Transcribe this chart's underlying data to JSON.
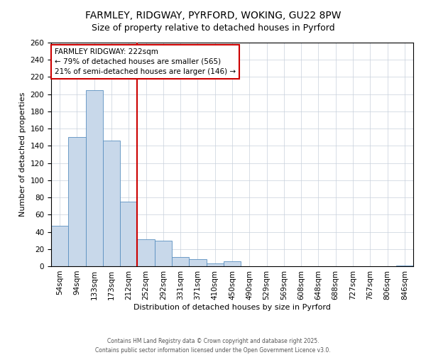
{
  "title": "FARMLEY, RIDGWAY, PYRFORD, WOKING, GU22 8PW",
  "subtitle": "Size of property relative to detached houses in Pyrford",
  "xlabel": "Distribution of detached houses by size in Pyrford",
  "ylabel": "Number of detached properties",
  "bar_labels": [
    "54sqm",
    "94sqm",
    "133sqm",
    "173sqm",
    "212sqm",
    "252sqm",
    "292sqm",
    "331sqm",
    "371sqm",
    "410sqm",
    "450sqm",
    "490sqm",
    "529sqm",
    "569sqm",
    "608sqm",
    "648sqm",
    "688sqm",
    "727sqm",
    "767sqm",
    "806sqm",
    "846sqm"
  ],
  "bar_values": [
    47,
    150,
    205,
    146,
    75,
    31,
    30,
    11,
    8,
    3,
    6,
    0,
    0,
    0,
    0,
    0,
    0,
    0,
    0,
    0,
    1
  ],
  "bar_color": "#c8d8ea",
  "bar_edge_color": "#5a8fc0",
  "vline_x_index": 4,
  "vline_color": "#cc0000",
  "ylim": [
    0,
    260
  ],
  "yticks": [
    0,
    20,
    40,
    60,
    80,
    100,
    120,
    140,
    160,
    180,
    200,
    220,
    240,
    260
  ],
  "annotation_title": "FARMLEY RIDGWAY: 222sqm",
  "annotation_line1": "← 79% of detached houses are smaller (565)",
  "annotation_line2": "21% of semi-detached houses are larger (146) →",
  "annotation_box_facecolor": "#ffffff",
  "annotation_box_edgecolor": "#cc0000",
  "footer1": "Contains HM Land Registry data © Crown copyright and database right 2025.",
  "footer2": "Contains public sector information licensed under the Open Government Licence v3.0.",
  "background_color": "#ffffff",
  "grid_color": "#c8d0dc",
  "title_fontsize": 10,
  "axis_label_fontsize": 8,
  "tick_fontsize": 7.5
}
